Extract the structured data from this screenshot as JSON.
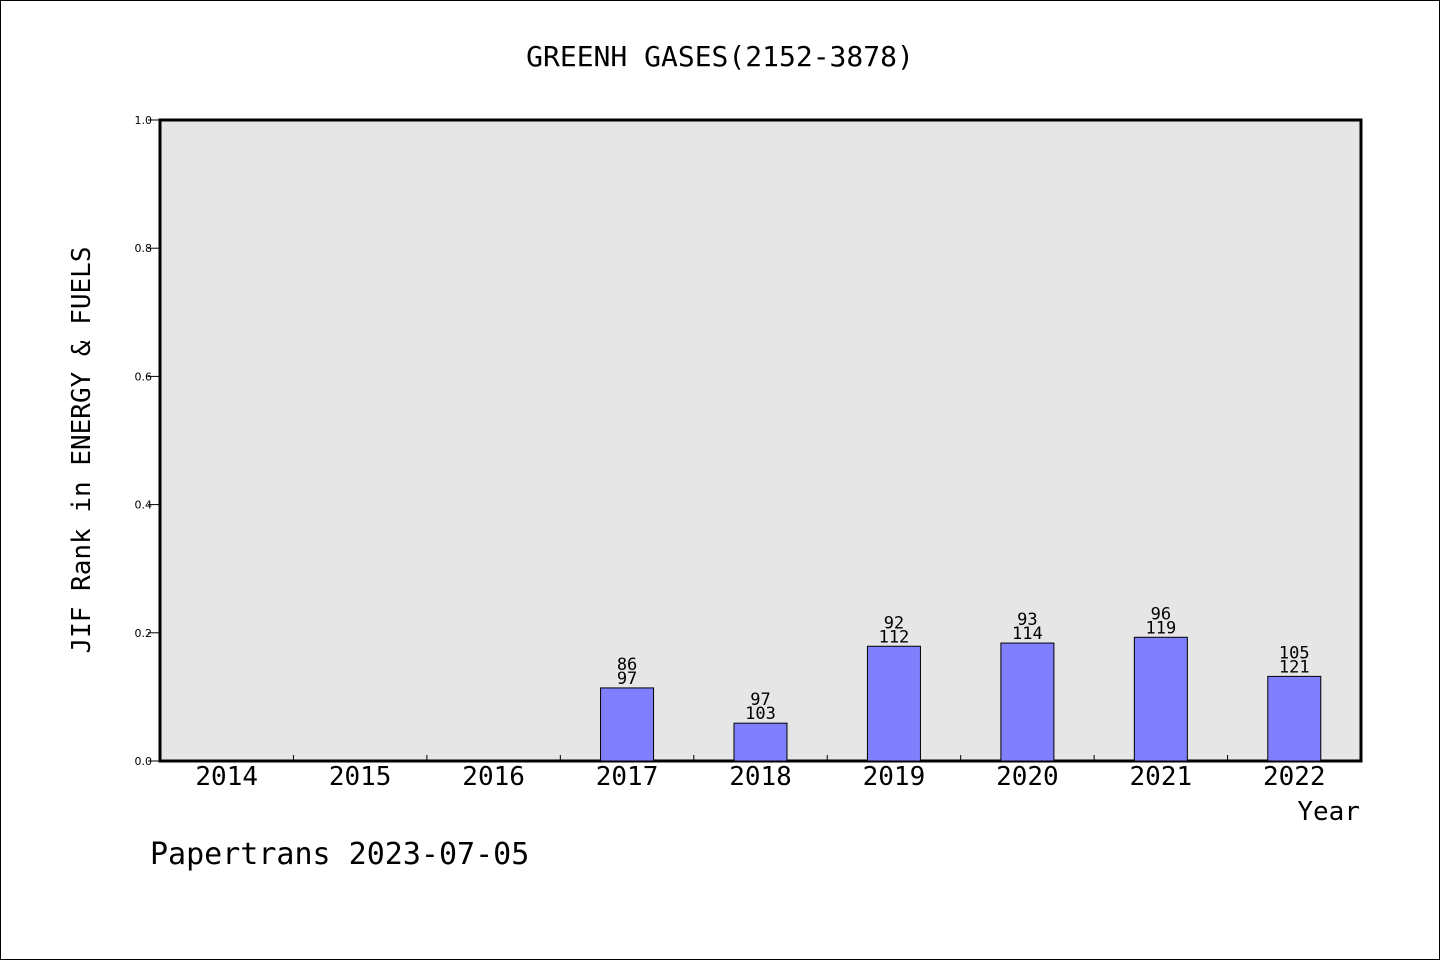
{
  "chart_data": {
    "type": "bar",
    "title": "GREENH GASES(2152-3878)",
    "xlabel": "Year",
    "ylabel": "JIF Rank in ENERGY & FUELS",
    "ylim": [
      0.0,
      1.0
    ],
    "y_ticks": [
      "0.0",
      "0.2",
      "0.4",
      "0.6",
      "0.8",
      "1.0"
    ],
    "grid": false,
    "categories": [
      "2014",
      "2015",
      "2016",
      "2017",
      "2018",
      "2019",
      "2020",
      "2021",
      "2022"
    ],
    "values": [
      0,
      0,
      0,
      0.114,
      0.059,
      0.179,
      0.184,
      0.193,
      0.132
    ],
    "rank_labels": [
      null,
      null,
      null,
      "86",
      "97",
      "92",
      "93",
      "96",
      "105"
    ],
    "total_labels": [
      null,
      null,
      null,
      "97",
      "103",
      "112",
      "114",
      "119",
      "121"
    ],
    "colors": {
      "bar": "#8080ff",
      "plot_background": "#e6e6e6"
    }
  },
  "footer": {
    "text": "Papertrans 2023-07-05"
  }
}
